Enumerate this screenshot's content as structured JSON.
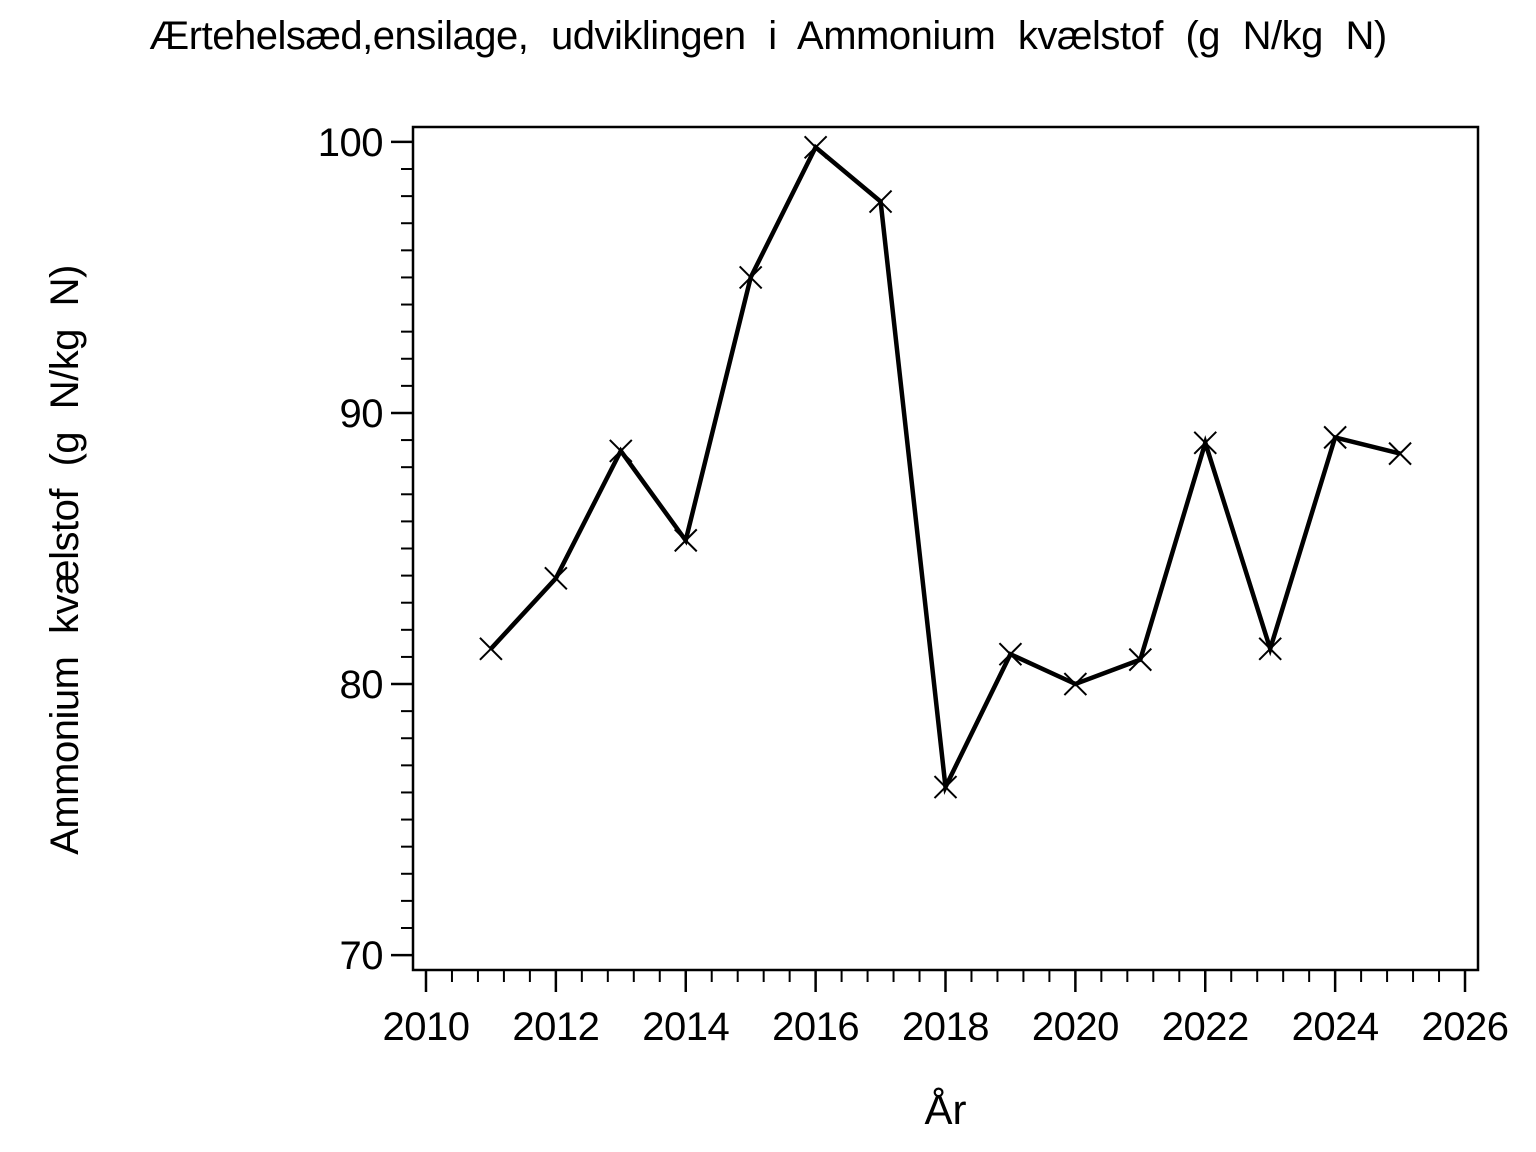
{
  "page": {
    "background": "#ffffff",
    "foreground": "#000000"
  },
  "header": {
    "title": "Ærtehelsæd,ensilage, udviklingen i Ammonium kvælstof (g N/kg N)"
  },
  "chart_data": {
    "type": "line",
    "title": "Ærtehelsæd,ensilage, udviklingen i Ammonium kvælstof (g N/kg N)",
    "xlabel": "År",
    "ylabel": "Ammonium kvælstof (g N/kg N)",
    "x": [
      2011,
      2012,
      2013,
      2014,
      2015,
      2016,
      2017,
      2018,
      2019,
      2020,
      2021,
      2022,
      2023,
      2024,
      2025
    ],
    "series": [
      {
        "name": "Ammonium kvælstof (g N/kg N)",
        "values": [
          81.3,
          83.9,
          88.6,
          85.3,
          95.0,
          99.8,
          97.8,
          76.2,
          81.1,
          80.0,
          80.9,
          88.9,
          81.3,
          89.1,
          88.5
        ]
      }
    ],
    "marker": "x",
    "line_color": "#000000",
    "marker_color": "#000000",
    "grid": false,
    "legend_position": "none",
    "xlim": [
      2009.8,
      2026.2
    ],
    "ylim": [
      69.45,
      100.55
    ],
    "x_ticks_major": [
      2010,
      2012,
      2014,
      2016,
      2018,
      2020,
      2022,
      2024,
      2026
    ],
    "x_tick_labels": [
      "2010",
      "2012",
      "2014",
      "2016",
      "2018",
      "2020",
      "2022",
      "2024",
      "2026"
    ],
    "x_minor_step": 0.4,
    "y_ticks_major": [
      70,
      80,
      90,
      100
    ],
    "y_tick_labels": [
      "70",
      "80",
      "90",
      "100"
    ],
    "y_minor_step": 1
  }
}
